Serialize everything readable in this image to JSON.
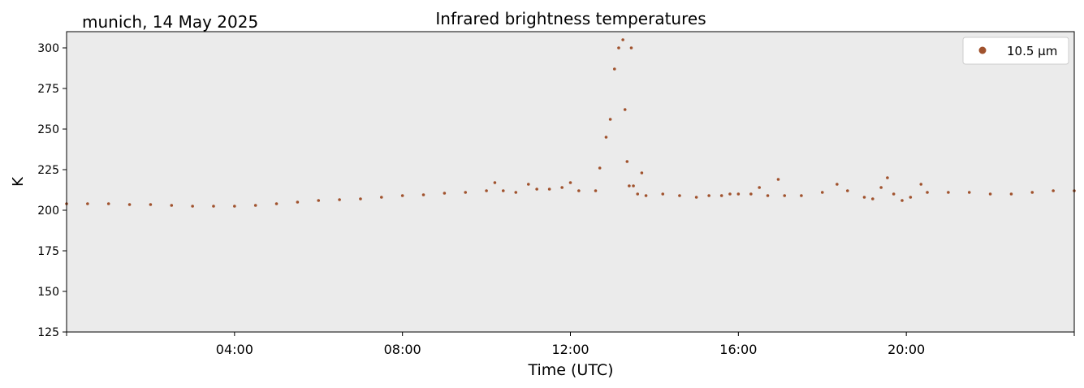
{
  "chart_data": {
    "type": "scatter",
    "title": "Infrared brightness temperatures",
    "subtitle": "munich, 14 May 2025",
    "xlabel": "Time (UTC)",
    "ylabel": "K",
    "x_unit": "hours UTC",
    "xlim": [
      0,
      24
    ],
    "ylim": [
      125,
      310
    ],
    "xticks": [
      {
        "value": 4,
        "label": "04:00"
      },
      {
        "value": 8,
        "label": "08:00"
      },
      {
        "value": 12,
        "label": "12:00"
      },
      {
        "value": 16,
        "label": "16:00"
      },
      {
        "value": 20,
        "label": "20:00"
      }
    ],
    "yticks": [
      125,
      150,
      175,
      200,
      225,
      250,
      275,
      300
    ],
    "grid": false,
    "legend_position": "top-right",
    "plot_background": "#ebebeb",
    "series": [
      {
        "name": "10.5 µm",
        "color": "#a0522d",
        "marker": "dot",
        "points": [
          [
            0.0,
            204
          ],
          [
            0.5,
            204
          ],
          [
            1.0,
            204
          ],
          [
            1.5,
            203.5
          ],
          [
            2.0,
            203.5
          ],
          [
            2.5,
            203
          ],
          [
            3.0,
            202.5
          ],
          [
            3.5,
            202.5
          ],
          [
            4.0,
            202.5
          ],
          [
            4.5,
            203
          ],
          [
            5.0,
            204
          ],
          [
            5.5,
            205
          ],
          [
            6.0,
            206
          ],
          [
            6.5,
            206.5
          ],
          [
            7.0,
            207
          ],
          [
            7.5,
            208
          ],
          [
            8.0,
            209
          ],
          [
            8.5,
            209.5
          ],
          [
            9.0,
            210.5
          ],
          [
            9.5,
            211
          ],
          [
            10.0,
            212
          ],
          [
            10.2,
            217
          ],
          [
            10.4,
            212
          ],
          [
            10.7,
            211
          ],
          [
            11.0,
            216
          ],
          [
            11.2,
            213
          ],
          [
            11.5,
            213
          ],
          [
            11.8,
            214
          ],
          [
            12.0,
            217
          ],
          [
            12.2,
            212
          ],
          [
            12.6,
            212
          ],
          [
            12.7,
            226
          ],
          [
            12.85,
            245
          ],
          [
            12.95,
            256
          ],
          [
            13.05,
            287
          ],
          [
            13.15,
            300
          ],
          [
            13.25,
            305
          ],
          [
            13.3,
            262
          ],
          [
            13.35,
            230
          ],
          [
            13.4,
            215
          ],
          [
            13.45,
            300
          ],
          [
            13.5,
            215
          ],
          [
            13.6,
            210
          ],
          [
            13.7,
            223
          ],
          [
            13.8,
            209
          ],
          [
            14.2,
            210
          ],
          [
            14.6,
            209
          ],
          [
            15.0,
            208
          ],
          [
            15.3,
            209
          ],
          [
            15.6,
            209
          ],
          [
            15.8,
            210
          ],
          [
            16.0,
            210
          ],
          [
            16.3,
            210
          ],
          [
            16.5,
            214
          ],
          [
            16.7,
            209
          ],
          [
            16.95,
            219
          ],
          [
            17.1,
            209
          ],
          [
            17.5,
            209
          ],
          [
            18.0,
            211
          ],
          [
            18.35,
            216
          ],
          [
            18.6,
            212
          ],
          [
            19.0,
            208
          ],
          [
            19.2,
            207
          ],
          [
            19.4,
            214
          ],
          [
            19.55,
            220
          ],
          [
            19.7,
            210
          ],
          [
            19.9,
            206
          ],
          [
            20.1,
            208
          ],
          [
            20.35,
            216
          ],
          [
            20.5,
            211
          ],
          [
            21.0,
            211
          ],
          [
            21.5,
            211
          ],
          [
            22.0,
            210
          ],
          [
            22.5,
            210
          ],
          [
            23.0,
            211
          ],
          [
            23.5,
            212
          ],
          [
            24.0,
            212
          ]
        ]
      }
    ]
  }
}
